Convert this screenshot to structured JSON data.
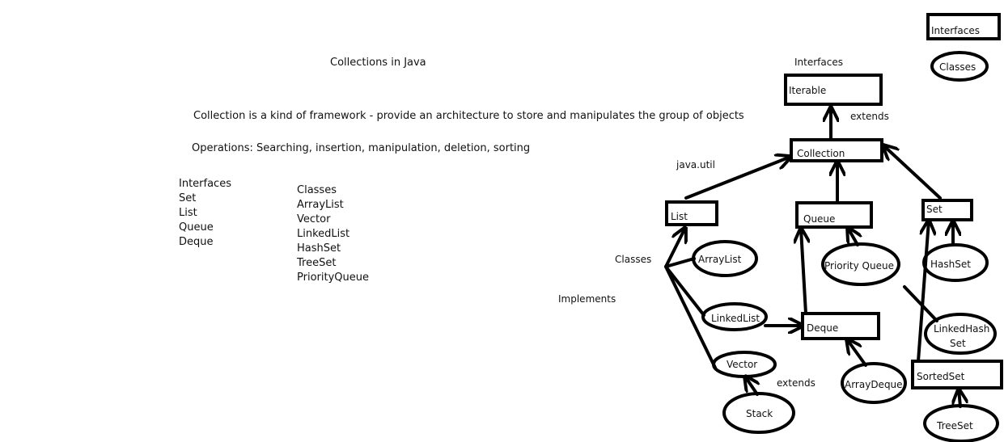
{
  "title": "Collections in Java",
  "definition": "Collection is a kind of framework - provide an architecture to store and manipulates the group of objects",
  "operations": "Operations: Searching, insertion, manipulation, deletion, sorting",
  "interfaces_list": {
    "heading": "Interfaces",
    "items": [
      "Set",
      "List",
      "Queue",
      "Deque"
    ]
  },
  "classes_list": {
    "heading": "Classes",
    "items": [
      "ArrayList",
      "Vector",
      "LinkedList",
      "HashSet",
      "TreeSet",
      "PriorityQueue"
    ]
  },
  "legend": {
    "interface_label": "Interfaces",
    "class_label": "Classes"
  },
  "diagram": {
    "interfaces_heading": "Interfaces",
    "package_label": "java.util",
    "classes_label": "Classes",
    "implements_label": "Implements",
    "extends_label_top": "extends",
    "extends_label_bottom": "extends",
    "iterable": "Iterable",
    "collection": "Collection",
    "list": "List",
    "queue": "Queue",
    "set": "Set",
    "deque": "Deque",
    "sortedset": "SortedSet",
    "arraylist": "ArrayList",
    "linkedlist": "LinkedList",
    "vector": "Vector",
    "stack": "Stack",
    "priorityqueue": "Priority Queue",
    "arraydeque": "ArrayDeque",
    "hashset": "HashSet",
    "linkedhashset_line1": "LinkedHash",
    "linkedhashset_line2": "Set",
    "treeset": "TreeSet"
  }
}
